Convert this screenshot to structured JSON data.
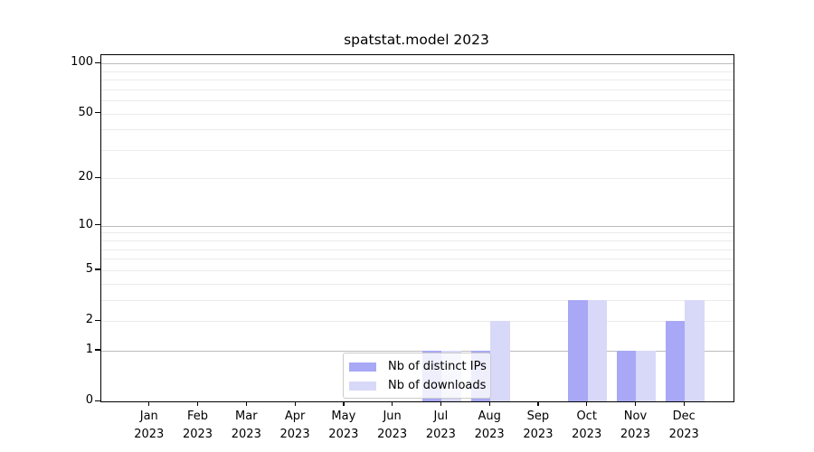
{
  "chart_data": {
    "type": "bar",
    "title": "spatstat.model 2023",
    "categories": [
      "Jan 2023",
      "Feb 2023",
      "Mar 2023",
      "Apr 2023",
      "May 2023",
      "Jun 2023",
      "Jul 2023",
      "Aug 2023",
      "Sep 2023",
      "Oct 2023",
      "Nov 2023",
      "Dec 2023"
    ],
    "x_tick_line1": [
      "Jan",
      "Feb",
      "Mar",
      "Apr",
      "May",
      "Jun",
      "Jul",
      "Aug",
      "Sep",
      "Oct",
      "Nov",
      "Dec"
    ],
    "x_tick_line2": [
      "2023",
      "2023",
      "2023",
      "2023",
      "2023",
      "2023",
      "2023",
      "2023",
      "2023",
      "2023",
      "2023",
      "2023"
    ],
    "series": [
      {
        "name": "Nb of distinct IPs",
        "color": "#a8a8f6",
        "values": [
          0,
          0,
          0,
          0,
          0,
          0,
          1,
          1,
          0,
          3,
          1,
          2
        ]
      },
      {
        "name": "Nb of downloads",
        "color": "#d8d8f8",
        "values": [
          0,
          0,
          0,
          0,
          0,
          0,
          1,
          2,
          0,
          3,
          1,
          3
        ]
      }
    ],
    "xlabel": "",
    "ylabel": "",
    "yscale": "log1p",
    "ylim": [
      0,
      112
    ],
    "y_tick_values": [
      0,
      1,
      2,
      5,
      10,
      20,
      50,
      100
    ],
    "y_tick_labels": [
      "0",
      "1",
      "2",
      "5",
      "10",
      "20",
      "50",
      "100"
    ],
    "major_grid_values": [
      1,
      10,
      100
    ],
    "minor_grid_values": [
      2,
      3,
      4,
      5,
      6,
      7,
      8,
      9,
      20,
      30,
      40,
      50,
      60,
      70,
      80,
      90
    ],
    "grid": "horizontal",
    "legend_position": "inside-bottom-center"
  },
  "legend": {
    "items": [
      {
        "label": "Nb of distinct IPs",
        "color": "#a8a8f6"
      },
      {
        "label": "Nb of downloads",
        "color": "#d8d8f8"
      }
    ]
  },
  "colors": {
    "background": "#ffffff",
    "axis": "#000000",
    "major_grid": "#bcbcbc",
    "minor_grid": "#ebebeb",
    "bar_distinct_ips": "#a8a8f6",
    "bar_downloads": "#d8d8f8",
    "legend_border": "#cbcbcb"
  }
}
